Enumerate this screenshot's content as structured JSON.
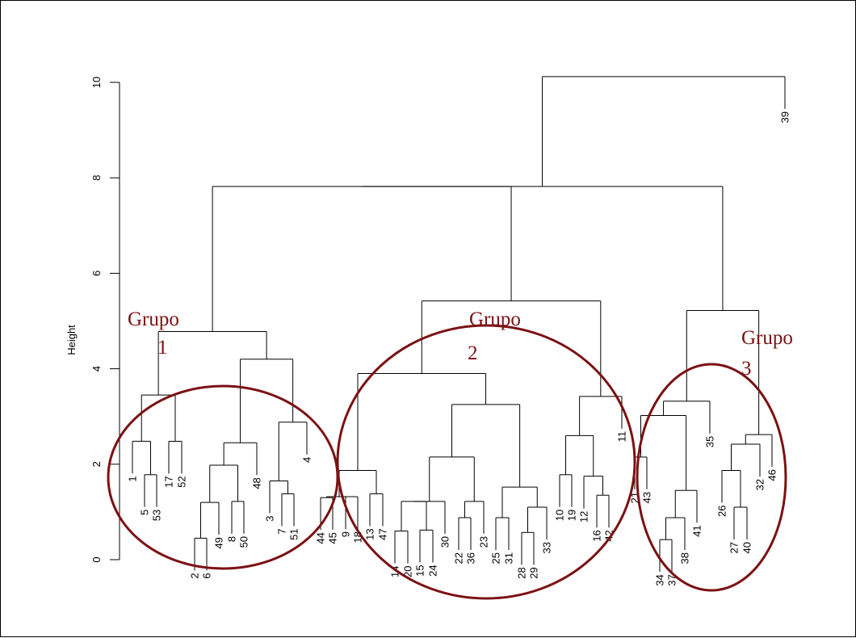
{
  "chart_data": {
    "type": "dendrogram",
    "ylabel": "Height",
    "ylim": [
      0,
      10
    ],
    "yticks": [
      "0",
      "2",
      "4",
      "6",
      "8",
      "10"
    ],
    "grid": false,
    "leaf_order": [
      "1",
      "5",
      "53",
      "17",
      "52",
      "2",
      "6",
      "49",
      "8",
      "50",
      "48",
      "3",
      "7",
      "51",
      "4",
      "44",
      "45",
      "9",
      "18",
      "13",
      "47",
      "14",
      "20",
      "15",
      "24",
      "30",
      "22",
      "36",
      "23",
      "25",
      "31",
      "28",
      "29",
      "33",
      "10",
      "19",
      "12",
      "16",
      "42",
      "11",
      "21",
      "43",
      "34",
      "37",
      "38",
      "41",
      "35",
      "26",
      "27",
      "40",
      "32",
      "46",
      "39"
    ],
    "merges": [
      {
        "a": "2",
        "b": "6",
        "h": 0.45
      },
      {
        "a": "28",
        "b": "29",
        "h": 0.57
      },
      {
        "a": "14",
        "b": "20",
        "h": 0.6
      },
      {
        "a": "15",
        "b": "24",
        "h": 0.62
      },
      {
        "a": "22",
        "b": "36",
        "h": 0.88
      },
      {
        "a": "25",
        "b": "31",
        "h": 0.88
      },
      {
        "a": "34",
        "b": "37",
        "h": 0.42
      },
      {
        "a": "27",
        "b": "40",
        "h": 1.1
      },
      {
        "a": "[28,29]",
        "b": "33",
        "h": 1.1
      },
      {
        "a": "[22,36]",
        "b": "23",
        "h": 1.22
      },
      {
        "a": "[14,20]",
        "b": "[15,24]",
        "h": 1.22
      },
      {
        "a": "[2,6]",
        "b": "49",
        "h": 1.2
      },
      {
        "a": "8",
        "b": "50",
        "h": 1.22
      },
      {
        "a": "[14,20,15,24]",
        "b": "30",
        "h": 1.22
      },
      {
        "a": "44",
        "b": "45",
        "h": 1.3
      },
      {
        "a": "9",
        "b": "18",
        "h": 1.32
      },
      {
        "a": "13",
        "b": "47",
        "h": 1.38
      },
      {
        "a": "7",
        "b": "51",
        "h": 1.38
      },
      {
        "a": "16",
        "b": "42",
        "h": 1.35
      },
      {
        "a": "[25,31]",
        "b": "[28,29,33]",
        "h": 1.52
      },
      {
        "a": "[34,37]",
        "b": "38",
        "h": 0.88
      },
      {
        "a": "[34,37,38]",
        "b": "41",
        "h": 1.45
      },
      {
        "a": "3",
        "b": "[7,51]",
        "h": 1.65
      },
      {
        "a": "5",
        "b": "53",
        "h": 1.78
      },
      {
        "a": "10",
        "b": "19",
        "h": 1.78
      },
      {
        "a": "12",
        "b": "[16,42]",
        "h": 1.75
      },
      {
        "a": "[9,18]",
        "b": "[13,47]",
        "h": 1.87
      },
      {
        "a": "26",
        "b": "[27,40]",
        "h": 1.87
      },
      {
        "a": "[2,6,49]",
        "b": "[8,50]",
        "h": 1.98
      },
      {
        "a": "[...]",
        "b": "[22,36,23]",
        "h": 2.15
      },
      {
        "a": "21",
        "b": "43",
        "h": 2.15
      },
      {
        "a": "[26,27,40]",
        "b": "[32]",
        "h": 2.42
      },
      {
        "a": "1",
        "b": "[5,53]",
        "h": 2.48
      },
      {
        "a": "17",
        "b": "52",
        "h": 2.48
      },
      {
        "a": "[2,6,49,8,50]",
        "b": "48",
        "h": 2.45
      },
      {
        "a": "[10,19]",
        "b": "[12,16,42]",
        "h": 2.6
      },
      {
        "a": "[...]",
        "b": "46",
        "h": 2.62
      },
      {
        "a": "[3,7,51]",
        "b": "4",
        "h": 2.88
      },
      {
        "a": "[...]",
        "b": "[25,31,28,29,33]",
        "h": 3.25
      },
      {
        "a": "[21,43]",
        "b": "[34,37,38,41]",
        "h": 3.02
      },
      {
        "a": "[...]",
        "b": "35",
        "h": 3.32
      },
      {
        "a": "[1,5,53]",
        "b": "[17,52]",
        "h": 3.45
      },
      {
        "a": "[...]",
        "b": "11",
        "h": 3.42
      },
      {
        "a": "[9,18,13,47]",
        "b": "[...]",
        "h": 3.9
      },
      {
        "a": "[...]",
        "b": "[...]",
        "h": 4.2
      },
      {
        "a": "[...]",
        "b": "[...]",
        "h": 4.78
      },
      {
        "a": "[...]",
        "b": "[...]",
        "h": 5.22
      },
      {
        "a": "[...]",
        "b": "[...]",
        "h": 5.42
      },
      {
        "a": "[...]",
        "b": "[...]",
        "h": 7.82
      },
      {
        "a": "[...]",
        "b": "[...]",
        "h": 7.82
      },
      {
        "a": "[...]",
        "b": "39",
        "h": 10.12
      }
    ],
    "annotations": [
      {
        "line1": "Grupo",
        "line2": "1"
      },
      {
        "line1": "Grupo",
        "line2": "2"
      },
      {
        "line1": "Grupo",
        "line2": "3"
      }
    ],
    "annotation_color": "#7b1113"
  }
}
